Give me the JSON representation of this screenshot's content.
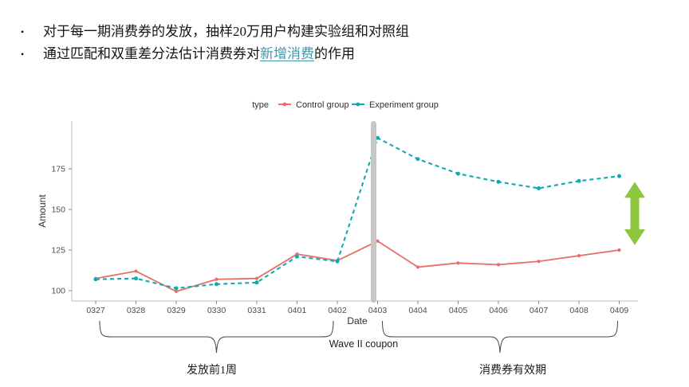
{
  "page": {
    "background": "#ffffff",
    "bullet_char": "•"
  },
  "bullets": [
    {
      "text_before": "对于每一期消费券的发放，抽样20万用户构建实验组和对照组",
      "highlight": "",
      "text_after": ""
    },
    {
      "text_before": "通过匹配和双重差分法估计消费券对",
      "highlight": "新增消费",
      "text_after": "的作用"
    }
  ],
  "highlight_color": "#4596a8",
  "chart_data": {
    "type": "line",
    "title": "",
    "legend_title": "type",
    "legend_position": "top",
    "xlabel": "Date",
    "ylabel": "Amount",
    "grid": false,
    "categories": [
      "0327",
      "0328",
      "0329",
      "0330",
      "0331",
      "0401",
      "0402",
      "0403",
      "0404",
      "0405",
      "0406",
      "0407",
      "0408",
      "0409"
    ],
    "yticks": [
      100,
      125,
      150,
      175
    ],
    "ylim": [
      95,
      200
    ],
    "series": [
      {
        "name": "Control group",
        "color": "#e96f66",
        "line_style": "solid",
        "values": [
          107.5,
          112,
          99.5,
          107,
          107.5,
          122.5,
          118.5,
          130.5,
          114.5,
          117,
          116,
          118,
          121.5,
          125
        ]
      },
      {
        "name": "Experiment group",
        "color": "#12a9b2",
        "line_style": "dashed",
        "values": [
          107,
          107.5,
          101.5,
          104,
          105,
          121,
          118,
          194,
          181,
          172,
          167,
          163,
          167.5,
          170.5
        ]
      }
    ],
    "annotations": {
      "event_bar": {
        "x_category": "0403",
        "color": "#c6c6c6"
      },
      "gap_arrow": {
        "color": "#8dc63f",
        "x_category": "0409",
        "top_value": 167,
        "bottom_value": 128
      },
      "braces": [
        {
          "label": "发放前1周",
          "from_category": "0327",
          "to_category": "0402"
        },
        {
          "label": "消费券有效期",
          "from_category": "0403",
          "to_category": "0409"
        }
      ],
      "coupon_label": "Wave II coupon"
    }
  }
}
